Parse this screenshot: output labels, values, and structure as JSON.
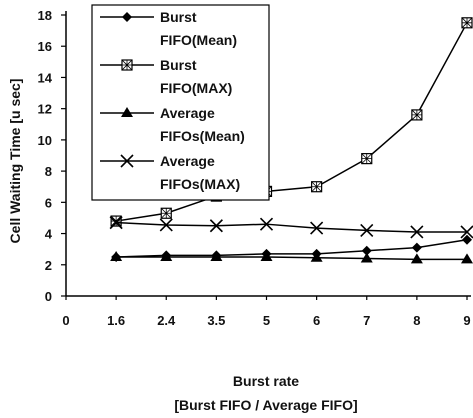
{
  "chart_data": {
    "type": "line",
    "categories": [
      "0",
      "1.6",
      "2.4",
      "3.5",
      "5",
      "6",
      "7",
      "8",
      "9"
    ],
    "xlabel_line1": "Burst rate",
    "xlabel_line2": "[Burst FIFO / Average FIFO]",
    "ylabel": "Cell Waiting Time [u sec]",
    "ylim": [
      0,
      18
    ],
    "yticks": [
      0,
      2,
      4,
      6,
      8,
      10,
      12,
      14,
      16,
      18
    ],
    "grid": false,
    "legend_position": "top-left",
    "series": [
      {
        "name_line1": "Burst",
        "name_line2": "FIFO(Mean)",
        "marker": "diamond",
        "values": [
          null,
          2.5,
          2.6,
          2.6,
          2.7,
          2.7,
          2.9,
          3.1,
          3.6
        ]
      },
      {
        "name_line1": "Burst",
        "name_line2": "FIFO(MAX)",
        "marker": "boxed-x",
        "values": [
          null,
          4.8,
          5.3,
          6.4,
          6.7,
          7.0,
          8.8,
          11.6,
          17.5
        ]
      },
      {
        "name_line1": "Average",
        "name_line2": "FIFOs(Mean)",
        "marker": "triangle",
        "values": [
          null,
          2.5,
          2.5,
          2.5,
          2.5,
          2.45,
          2.4,
          2.35,
          2.35
        ]
      },
      {
        "name_line1": "Average",
        "name_line2": "FIFOs(MAX)",
        "marker": "x",
        "values": [
          null,
          4.7,
          4.55,
          4.5,
          4.6,
          4.35,
          4.2,
          4.1,
          4.1
        ]
      }
    ]
  }
}
